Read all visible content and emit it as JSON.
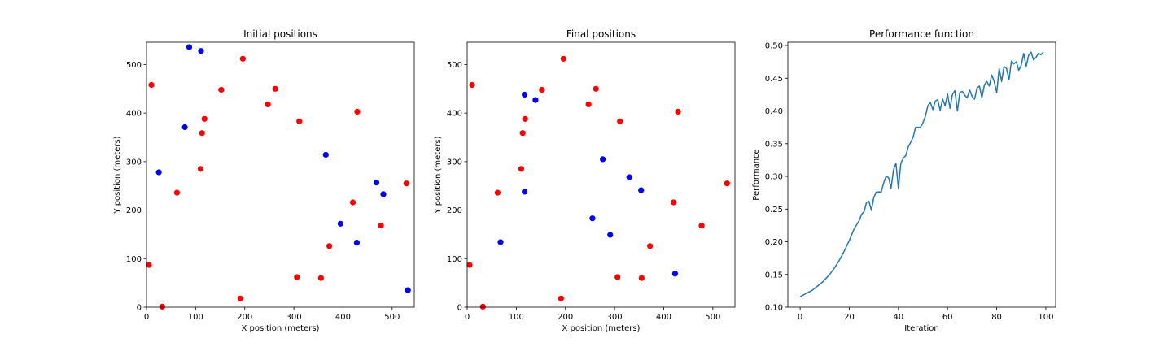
{
  "chart_data": [
    {
      "type": "scatter",
      "title": "Initial positions",
      "xlabel": "X position (meters)",
      "ylabel": "Y position (meters)",
      "xlim": [
        0,
        545
      ],
      "ylim": [
        0,
        546
      ],
      "xticks": [
        0,
        100,
        200,
        300,
        400,
        500
      ],
      "yticks": [
        0,
        100,
        200,
        300,
        400,
        500
      ],
      "series": [
        {
          "color": "#ff0000",
          "points": [
            [
              10,
              458
            ],
            [
              196,
              512
            ],
            [
              152,
              448
            ],
            [
              262,
              450
            ],
            [
              247,
              418
            ],
            [
              118,
              388
            ],
            [
              113,
              359
            ],
            [
              429,
              403
            ],
            [
              311,
              383
            ],
            [
              110,
              285
            ],
            [
              62,
              236
            ],
            [
              420,
              216
            ],
            [
              529,
              255
            ],
            [
              477,
              168
            ],
            [
              372,
              126
            ],
            [
              5,
              87
            ],
            [
              32,
              1
            ],
            [
              191,
              18
            ],
            [
              306,
              62
            ],
            [
              355,
              60
            ]
          ]
        },
        {
          "color": "#0000ff",
          "points": [
            [
              87,
              536
            ],
            [
              111,
              528
            ],
            [
              78,
              371
            ],
            [
              25,
              278
            ],
            [
              365,
              314
            ],
            [
              468,
              257
            ],
            [
              482,
              233
            ],
            [
              395,
              172
            ],
            [
              428,
              133
            ],
            [
              532,
              35
            ]
          ]
        }
      ]
    },
    {
      "type": "scatter",
      "title": "Final positions",
      "xlabel": "X position (meters)",
      "ylabel": "Y position (meters)",
      "xlim": [
        0,
        545
      ],
      "ylim": [
        0,
        546
      ],
      "xticks": [
        0,
        100,
        200,
        300,
        400,
        500
      ],
      "yticks": [
        0,
        100,
        200,
        300,
        400,
        500
      ],
      "series": [
        {
          "color": "#ff0000",
          "points": [
            [
              10,
              458
            ],
            [
              196,
              512
            ],
            [
              152,
              448
            ],
            [
              262,
              450
            ],
            [
              247,
              418
            ],
            [
              118,
              388
            ],
            [
              113,
              359
            ],
            [
              429,
              403
            ],
            [
              311,
              383
            ],
            [
              110,
              285
            ],
            [
              62,
              236
            ],
            [
              420,
              216
            ],
            [
              529,
              255
            ],
            [
              477,
              168
            ],
            [
              372,
              126
            ],
            [
              5,
              87
            ],
            [
              32,
              1
            ],
            [
              191,
              18
            ],
            [
              306,
              62
            ],
            [
              355,
              60
            ]
          ]
        },
        {
          "color": "#0000ff",
          "points": [
            [
              117,
              438
            ],
            [
              139,
              427
            ],
            [
              117,
              238
            ],
            [
              276,
              305
            ],
            [
              330,
              268
            ],
            [
              354,
              241
            ],
            [
              255,
              183
            ],
            [
              291,
              149
            ],
            [
              68,
              134
            ],
            [
              423,
              69
            ]
          ]
        }
      ]
    },
    {
      "type": "line",
      "title": "Performance function",
      "xlabel": "Iteration",
      "ylabel": "Performance",
      "xlim": [
        -5,
        104
      ],
      "ylim": [
        0.1,
        0.505
      ],
      "xticks": [
        0,
        20,
        40,
        60,
        80,
        100
      ],
      "yticks": [
        0.1,
        0.15,
        0.2,
        0.25,
        0.3,
        0.35,
        0.4,
        0.45,
        0.5
      ],
      "ytick_labels": [
        "0.10",
        "0.15",
        "0.20",
        "0.25",
        "0.30",
        "0.35",
        "0.40",
        "0.45",
        "0.50"
      ],
      "series": [
        {
          "color": "#1f77b4",
          "x": [
            0,
            1,
            2,
            3,
            4,
            5,
            6,
            7,
            8,
            9,
            10,
            11,
            12,
            13,
            14,
            15,
            16,
            17,
            18,
            19,
            20,
            21,
            22,
            23,
            24,
            25,
            26,
            27,
            28,
            29,
            30,
            31,
            32,
            33,
            34,
            35,
            36,
            37,
            38,
            39,
            40,
            41,
            42,
            43,
            44,
            45,
            46,
            47,
            48,
            49,
            50,
            51,
            52,
            53,
            54,
            55,
            56,
            57,
            58,
            59,
            60,
            61,
            62,
            63,
            64,
            65,
            66,
            67,
            68,
            69,
            70,
            71,
            72,
            73,
            74,
            75,
            76,
            77,
            78,
            79,
            80,
            81,
            82,
            83,
            84,
            85,
            86,
            87,
            88,
            89,
            90,
            91,
            92,
            93,
            94,
            95,
            96,
            97,
            98,
            99
          ],
          "y": [
            0.116,
            0.118,
            0.12,
            0.122,
            0.124,
            0.126,
            0.129,
            0.132,
            0.135,
            0.138,
            0.142,
            0.146,
            0.15,
            0.155,
            0.16,
            0.166,
            0.172,
            0.179,
            0.186,
            0.194,
            0.202,
            0.211,
            0.22,
            0.226,
            0.232,
            0.242,
            0.246,
            0.26,
            0.262,
            0.248,
            0.268,
            0.276,
            0.276,
            0.276,
            0.29,
            0.3,
            0.298,
            0.282,
            0.31,
            0.32,
            0.282,
            0.32,
            0.328,
            0.332,
            0.345,
            0.352,
            0.36,
            0.375,
            0.375,
            0.375,
            0.382,
            0.392,
            0.408,
            0.413,
            0.402,
            0.415,
            0.417,
            0.401,
            0.418,
            0.408,
            0.426,
            0.404,
            0.425,
            0.431,
            0.4,
            0.428,
            0.43,
            0.424,
            0.42,
            0.432,
            0.422,
            0.418,
            0.435,
            0.438,
            0.42,
            0.44,
            0.445,
            0.438,
            0.455,
            0.445,
            0.428,
            0.465,
            0.445,
            0.468,
            0.465,
            0.448,
            0.476,
            0.472,
            0.475,
            0.462,
            0.47,
            0.488,
            0.468,
            0.485,
            0.49,
            0.478,
            0.482,
            0.488,
            0.486,
            0.49
          ]
        }
      ]
    }
  ]
}
